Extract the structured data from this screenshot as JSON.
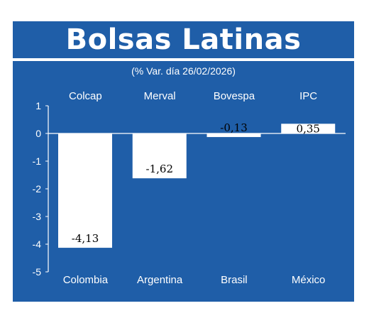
{
  "header": {
    "title": "Bolsas Latinas",
    "subtitle": "(% Var. día 26/02/2026)"
  },
  "colors": {
    "background": "#1f5ea8",
    "bar": "#ffffff",
    "text": "#ffffff",
    "label_text": "#000000"
  },
  "chart_data": {
    "type": "bar",
    "title": "Bolsas Latinas",
    "subtitle": "(% Var. día 26/02/2026)",
    "categories": [
      "Colombia",
      "Argentina",
      "Brasil",
      "México"
    ],
    "index_names": [
      "Colcap",
      "Merval",
      "Bovespa",
      "IPC"
    ],
    "values": [
      -4.13,
      -1.62,
      -0.13,
      0.35
    ],
    "value_labels": [
      "-4,13",
      "-1,62",
      "-0,13",
      "0,35"
    ],
    "ylim": [
      -5,
      1
    ],
    "yticks": [
      1,
      0,
      -1,
      -2,
      -3,
      -4,
      -5
    ],
    "ytick_labels": [
      "1",
      "0",
      "-1",
      "-2",
      "-3",
      "-4",
      "-5"
    ],
    "xlabel": "",
    "ylabel": "",
    "grid": false,
    "legend": "none"
  }
}
